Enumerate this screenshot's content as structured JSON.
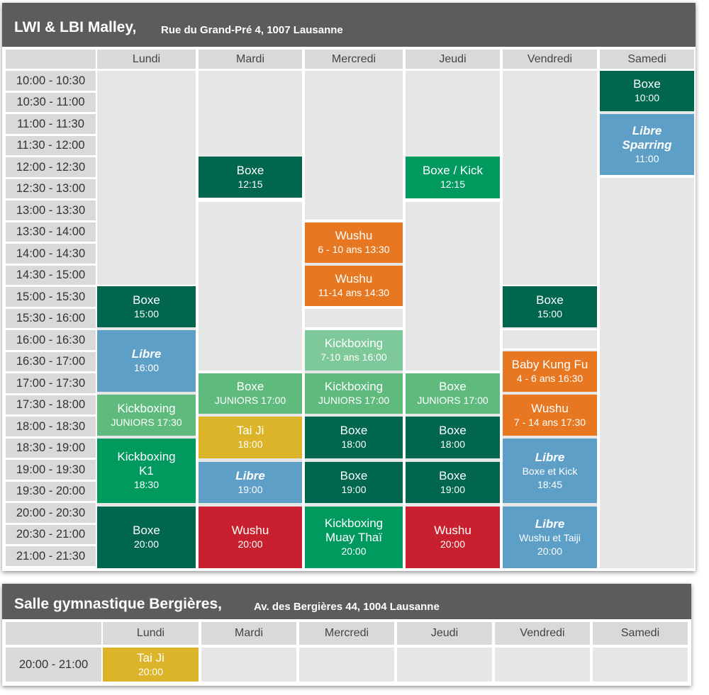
{
  "colors": {
    "title_bar": "#5c5c5c",
    "boxe": "#00664d",
    "kickboxing": "#009a5e",
    "juniors": "#5fbb7d",
    "kids_kickboxing": "#7ec99a",
    "libre": "#5d9fc6",
    "wushu_kids": "#e87722",
    "tai_ji": "#dbb42a",
    "wushu": "#c8202e"
  },
  "malley": {
    "title": "LWI  & LBI Malley,",
    "address": "Rue du Grand-Pré 4, 1007 Lausanne",
    "days": [
      "Lundi",
      "Mardi",
      "Mercredi",
      "Jeudi",
      "Vendredi",
      "Samedi"
    ],
    "times": [
      "10:00 - 10:30",
      "10:30 - 11:00",
      "11:00 - 11:30",
      "11:30 - 12:00",
      "12:00 - 12:30",
      "12:30 - 13:00",
      "13:00 - 13:30",
      "13:30 - 14:00",
      "14:00 - 14:30",
      "14:30 - 15:00",
      "15:00 - 15:30",
      "15:30 - 16:00",
      "16:00 - 16:30",
      "16:30 - 17:00",
      "17:00 - 17:30",
      "17:30 - 18:00",
      "18:00 - 18:30",
      "18:30 - 19:00",
      "19:00 - 19:30",
      "19:30 - 20:00",
      "20:00 - 20:30",
      "20:30 - 21:00",
      "21:00 - 21:30"
    ],
    "classes": {
      "lun_boxe_15": {
        "title": "Boxe",
        "sub": "15:00"
      },
      "lun_libre_16": {
        "title": "Libre",
        "sub": "16:00"
      },
      "lun_kick_jun": {
        "title": "Kickboxing",
        "sub": "JUNIORS 17:30"
      },
      "lun_kick_k1": {
        "title": "Kickboxing",
        "title2": "K1",
        "sub": "18:30"
      },
      "lun_boxe_20": {
        "title": "Boxe",
        "sub": "20:00"
      },
      "mar_boxe_1215": {
        "title": "Boxe",
        "sub": "12:15"
      },
      "mar_boxe_jun": {
        "title": "Boxe",
        "sub": "JUNIORS 17:00"
      },
      "mar_taiji": {
        "title": "Tai Ji",
        "sub": "18:00"
      },
      "mar_libre_19": {
        "title": "Libre",
        "sub": "19:00"
      },
      "mar_wushu_20": {
        "title": "Wushu",
        "sub": "20:00"
      },
      "mer_wushu_610": {
        "title": "Wushu",
        "sub": "6 - 10 ans 13:30"
      },
      "mer_wushu_1114": {
        "title": "Wushu",
        "sub": "11-14 ans 14:30"
      },
      "mer_kick_710": {
        "title": "Kickboxing",
        "sub": "7-10 ans  16:00"
      },
      "mer_kick_jun": {
        "title": "Kickboxing",
        "sub": "JUNIORS 17:00"
      },
      "mer_boxe_18": {
        "title": "Boxe",
        "sub": "18:00"
      },
      "mer_boxe_19": {
        "title": "Boxe",
        "sub": "19:00"
      },
      "mer_kick_muay": {
        "title": "Kickboxing",
        "title2": "Muay Thaï",
        "sub": "20:00"
      },
      "jeu_boxekick": {
        "title": "Boxe / Kick",
        "sub": "12:15"
      },
      "jeu_boxe_jun": {
        "title": "Boxe",
        "sub": "JUNIORS 17:00"
      },
      "jeu_boxe_18": {
        "title": "Boxe",
        "sub": "18:00"
      },
      "jeu_boxe_19": {
        "title": "Boxe",
        "sub": "19:00"
      },
      "jeu_wushu_20": {
        "title": "Wushu",
        "sub": "20:00"
      },
      "ven_boxe_15": {
        "title": "Boxe",
        "sub": "15:00"
      },
      "ven_baby": {
        "title": "Baby Kung Fu",
        "sub": "4 - 6 ans 16:30"
      },
      "ven_wushu_714": {
        "title": "Wushu",
        "sub": "7 - 14 ans 17:30"
      },
      "ven_libre_bk": {
        "title": "Libre",
        "sub": "Boxe et Kick",
        "sub2": "18:45"
      },
      "ven_libre_wt": {
        "title": "Libre",
        "sub": "Wushu et Taiji",
        "sub2": "20:00"
      },
      "sam_boxe_10": {
        "title": "Boxe",
        "sub": "10:00"
      },
      "sam_libre_sparring": {
        "title": "Libre",
        "title2": "Sparring",
        "sub": "11:00"
      }
    }
  },
  "bergieres": {
    "title": "Salle gymnastique Bergières,",
    "address": "Av. des Bergières 44, 1004 Lausanne",
    "days": [
      "Lundi",
      "Mardi",
      "Mercredi",
      "Jeudi",
      "Vendredi",
      "Samedi"
    ],
    "time": "20:00 - 21:00",
    "class": {
      "title": "Tai Ji",
      "sub": "20:00"
    }
  }
}
